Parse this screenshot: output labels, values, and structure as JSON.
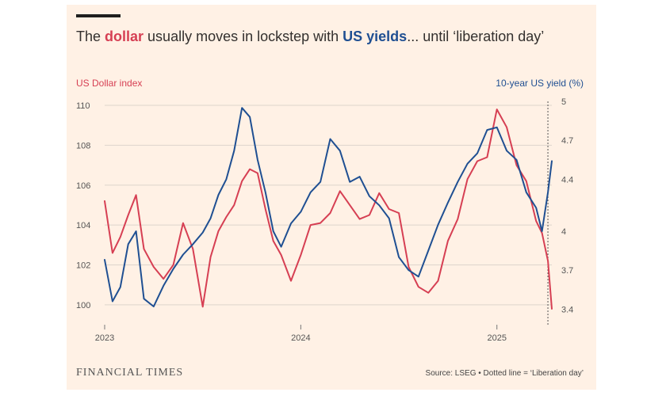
{
  "colors": {
    "background": "#fff1e5",
    "dollar": "#d63f53",
    "yield": "#1f4f92",
    "grid": "#ddd5cc",
    "text": "#33302e"
  },
  "title": {
    "prefix": "The ",
    "dollar": "dollar",
    "middle": " usually moves in lockstep with ",
    "yields": "US yields",
    "suffix": "... until ‘liberation day’"
  },
  "chart_data": {
    "type": "line",
    "title": "The dollar usually moves in lockstep with US yields... until ‘liberation day’",
    "left_axis_title": "US Dollar index",
    "right_axis_title": "10-year US yield (%)",
    "x_tick_labels": [
      "2023",
      "2024",
      "2025"
    ],
    "left_tick_labels": [
      "100",
      "102",
      "104",
      "106",
      "108",
      "110"
    ],
    "right_tick_labels": [
      "3.4",
      "3.7",
      "4",
      "4.4",
      "4.7",
      "5"
    ],
    "xlim": [
      2023,
      2025.28
    ],
    "left_ylim": [
      99.0,
      110.2
    ],
    "right_ylim": [
      3.28,
      5.0
    ],
    "grid": true,
    "event_line": {
      "x": 2025.26,
      "label": "‘Liberation day’"
    },
    "series": [
      {
        "name": "US Dollar index",
        "axis": "left",
        "x": [
          2023.0,
          2023.04,
          2023.08,
          2023.12,
          2023.16,
          2023.2,
          2023.25,
          2023.3,
          2023.35,
          2023.4,
          2023.45,
          2023.5,
          2023.54,
          2023.58,
          2023.62,
          2023.66,
          2023.7,
          2023.74,
          2023.78,
          2023.82,
          2023.86,
          2023.9,
          2023.95,
          2024.0,
          2024.05,
          2024.1,
          2024.15,
          2024.2,
          2024.25,
          2024.3,
          2024.35,
          2024.4,
          2024.45,
          2024.5,
          2024.55,
          2024.6,
          2024.65,
          2024.7,
          2024.75,
          2024.8,
          2024.85,
          2024.9,
          2024.95,
          2025.0,
          2025.05,
          2025.1,
          2025.15,
          2025.2,
          2025.23,
          2025.26,
          2025.28
        ],
        "values": [
          105.2,
          102.6,
          103.4,
          104.5,
          105.5,
          102.8,
          101.9,
          101.3,
          102.0,
          104.1,
          102.8,
          99.9,
          102.4,
          103.7,
          104.4,
          105.0,
          106.2,
          106.8,
          106.6,
          104.8,
          103.2,
          102.5,
          101.2,
          102.5,
          104.0,
          104.1,
          104.6,
          105.7,
          105.0,
          104.3,
          104.5,
          105.6,
          104.8,
          104.6,
          101.9,
          100.9,
          100.6,
          101.2,
          103.2,
          104.3,
          106.3,
          107.2,
          107.4,
          109.8,
          108.9,
          107.0,
          106.2,
          104.2,
          103.6,
          102.2,
          99.8
        ]
      },
      {
        "name": "10-year US yield (%)",
        "axis": "right",
        "x": [
          2023.0,
          2023.04,
          2023.08,
          2023.12,
          2023.16,
          2023.2,
          2023.25,
          2023.3,
          2023.35,
          2023.4,
          2023.45,
          2023.5,
          2023.54,
          2023.58,
          2023.62,
          2023.66,
          2023.7,
          2023.74,
          2023.78,
          2023.82,
          2023.86,
          2023.9,
          2023.95,
          2024.0,
          2024.05,
          2024.1,
          2024.15,
          2024.2,
          2024.25,
          2024.3,
          2024.35,
          2024.4,
          2024.45,
          2024.5,
          2024.55,
          2024.6,
          2024.65,
          2024.7,
          2024.75,
          2024.8,
          2024.85,
          2024.9,
          2024.95,
          2025.0,
          2025.05,
          2025.1,
          2025.15,
          2025.2,
          2025.23,
          2025.26,
          2025.28
        ],
        "values": [
          3.78,
          3.46,
          3.57,
          3.9,
          4.0,
          3.48,
          3.42,
          3.58,
          3.71,
          3.82,
          3.9,
          3.99,
          4.1,
          4.28,
          4.4,
          4.62,
          4.95,
          4.88,
          4.55,
          4.3,
          4.0,
          3.88,
          4.06,
          4.15,
          4.3,
          4.38,
          4.71,
          4.62,
          4.38,
          4.42,
          4.27,
          4.2,
          4.1,
          3.8,
          3.7,
          3.65,
          3.85,
          4.05,
          4.22,
          4.38,
          4.52,
          4.6,
          4.78,
          4.8,
          4.62,
          4.55,
          4.3,
          4.18,
          4.0,
          4.3,
          4.54
        ]
      }
    ]
  },
  "footer": {
    "brand": "FINANCIAL TIMES",
    "source": "Source: LSEG • Dotted line = ‘Liberation day’"
  }
}
